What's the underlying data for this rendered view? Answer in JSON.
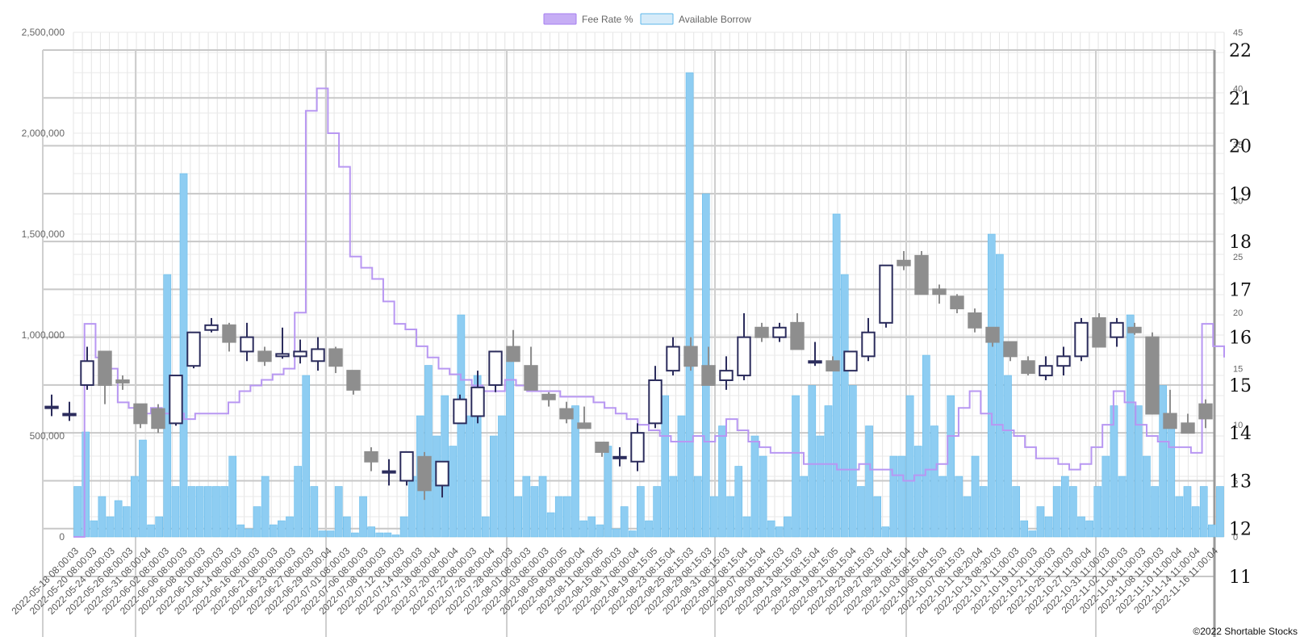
{
  "chart_data": {
    "type": "bar",
    "legend": {
      "position": "top-center",
      "entries": [
        {
          "label": "Fee Rate %",
          "color": "#c6adf5",
          "border": "#a57ef0"
        },
        {
          "label": "Available Borrow",
          "color": "#d6ebf9",
          "border": "#5db7ea"
        }
      ]
    },
    "copyright": "©2022 Shortable Stocks",
    "y_left": {
      "min": 0,
      "max": 2500000,
      "ticks": [
        "0",
        "500,000",
        "1,000,000",
        "1,500,000",
        "2,000,000",
        "2,500,000"
      ]
    },
    "y_fee": {
      "min": 0,
      "max": 45,
      "ticks": [
        "0",
        "5",
        "10",
        "15",
        "20",
        "25",
        "30",
        "35",
        "40",
        "45"
      ]
    },
    "y_price": {
      "min": 11,
      "max": 22,
      "ticks": [
        "11",
        "12",
        "13",
        "14",
        "15",
        "16",
        "17",
        "18",
        "19",
        "20",
        "21",
        "22"
      ]
    },
    "x_labels": [
      "2022-05-18 08:00:03",
      "2022-05-20 08:00:03",
      "2022-05-24 08:00:03",
      "2022-05-26 08:00:03",
      "2022-05-31 08:00:04",
      "2022-06-02 08:00:03",
      "2022-06-06 08:00:03",
      "2022-06-08 08:00:03",
      "2022-06-10 08:00:03",
      "2022-06-14 08:00:03",
      "2022-06-16 08:00:03",
      "2022-06-21 08:00:03",
      "2022-06-23 08:00:03",
      "2022-06-27 08:00:03",
      "2022-06-29 08:00:04",
      "2022-07-01 08:00:03",
      "2022-07-06 08:00:03",
      "2022-07-08 08:00:03",
      "2022-07-12 08:00:03",
      "2022-07-14 08:00:03",
      "2022-07-18 08:00:04",
      "2022-07-20 08:00:04",
      "2022-07-22 08:00:03",
      "2022-07-26 08:00:04",
      "2022-07-28 08:00:03",
      "2022-08-01 08:00:03",
      "2022-08-03 08:00:03",
      "2022-08-05 08:00:05",
      "2022-08-09 08:00:04",
      "2022-08-11 08:00:05",
      "2022-08-15 08:00:03",
      "2022-08-17 08:00:04",
      "2022-08-19 08:15:05",
      "2022-08-23 08:15:04",
      "2022-08-25 08:15:03",
      "2022-08-29 08:15:03",
      "2022-08-31 08:15:03",
      "2022-09-02 08:15:04",
      "2022-09-07 08:15:04",
      "2022-09-09 08:15:03",
      "2022-09-13 08:15:03",
      "2022-09-15 08:15:04",
      "2022-09-19 08:15:05",
      "2022-09-21 08:15:04",
      "2022-09-23 08:15:03",
      "2022-09-27 08:15:04",
      "2022-09-29 08:15:04",
      "2022-10-03 08:15:04",
      "2022-10-05 08:15:03",
      "2022-10-07 08:15:03",
      "2022-10-11 08:20:04",
      "2022-10-13 08:30:03",
      "2022-10-17 11:00:03",
      "2022-10-19 11:00:03",
      "2022-10-21 11:00:03",
      "2022-10-25 11:00:03",
      "2022-10-27 11:00:04",
      "2022-10-31 11:00:03",
      "2022-11-02 11:00:03",
      "2022-11-04 11:00:03",
      "2022-11-08 11:00:03",
      "2022-11-10 11:00:04",
      "2022-11-14 11:00:04",
      "2022-11-16 11:00:04"
    ],
    "available_borrow": [
      250000,
      520000,
      80000,
      200000,
      100000,
      180000,
      150000,
      300000,
      480000,
      60000,
      100000,
      1300000,
      250000,
      1800000,
      250000,
      250000,
      250000,
      250000,
      250000,
      400000,
      60000,
      40000,
      150000,
      300000,
      60000,
      80000,
      100000,
      350000,
      800000,
      250000,
      30000,
      30000,
      250000,
      100000,
      20000,
      200000,
      50000,
      20000,
      20000,
      10000,
      100000,
      300000,
      600000,
      850000,
      500000,
      700000,
      450000,
      1100000,
      600000,
      800000,
      100000,
      500000,
      600000,
      900000,
      200000,
      300000,
      250000,
      300000,
      120000,
      200000,
      200000,
      650000,
      80000,
      100000,
      60000,
      450000,
      40000,
      150000,
      30000,
      250000,
      80000,
      250000,
      700000,
      300000,
      600000,
      2300000,
      300000,
      1700000,
      200000,
      550000,
      200000,
      350000,
      100000,
      500000,
      400000,
      80000,
      50000,
      100000,
      700000,
      300000,
      750000,
      500000,
      650000,
      1600000,
      1300000,
      750000,
      250000,
      550000,
      200000,
      50000,
      400000,
      400000,
      700000,
      450000,
      900000,
      550000,
      300000,
      700000,
      300000,
      200000,
      400000,
      250000,
      1500000,
      1400000,
      800000,
      250000,
      80000,
      30000,
      150000,
      100000,
      250000,
      300000,
      250000,
      100000,
      80000,
      250000,
      400000,
      650000,
      300000,
      1100000,
      650000,
      400000,
      250000,
      750000,
      600000,
      200000,
      250000,
      150000,
      250000,
      60000,
      250000
    ],
    "fee_rate": [
      0,
      19,
      16,
      15,
      12,
      11.5,
      11,
      11.5,
      11,
      11,
      10.5,
      11,
      11,
      11,
      12,
      13,
      13.5,
      14,
      14.5,
      15,
      20,
      38,
      40,
      36,
      33,
      25,
      24,
      23,
      21,
      19,
      18.5,
      17,
      16,
      15,
      14.5,
      14,
      13.5,
      13,
      13,
      14,
      13.5,
      13,
      13,
      13,
      12.5,
      12.5,
      12.5,
      12,
      11.5,
      11,
      10.5,
      10,
      9.5,
      9,
      8.5,
      8.5,
      9,
      8.5,
      9,
      10.5,
      9.5,
      8.5,
      8,
      7.5,
      7.5,
      7.5,
      6.5,
      6.5,
      6.5,
      6,
      6,
      6.5,
      6,
      6,
      5.5,
      5,
      5.5,
      6,
      6.5,
      9,
      11.5,
      13,
      11,
      10,
      9.5,
      9,
      8,
      7,
      7,
      6.5,
      6,
      6.5,
      8,
      10,
      13,
      12,
      10,
      9,
      8.5,
      8,
      8,
      7.5,
      19,
      17,
      16
    ],
    "candles": [
      {
        "o": 14.55,
        "h": 14.8,
        "l": 14.35,
        "c": 14.55
      },
      {
        "o": 14.4,
        "h": 14.65,
        "l": 14.25,
        "c": 14.4
      },
      {
        "o": 15.0,
        "h": 15.8,
        "l": 14.9,
        "c": 15.5
      },
      {
        "o": 15.7,
        "h": 15.7,
        "l": 14.6,
        "c": 15.0
      },
      {
        "o": 15.1,
        "h": 15.2,
        "l": 14.9,
        "c": 15.05
      },
      {
        "o": 14.6,
        "h": 14.6,
        "l": 14.1,
        "c": 14.2
      },
      {
        "o": 14.5,
        "h": 14.6,
        "l": 14.0,
        "c": 14.1
      },
      {
        "o": 14.2,
        "h": 15.1,
        "l": 14.15,
        "c": 15.2
      },
      {
        "o": 15.4,
        "h": 16.0,
        "l": 15.35,
        "c": 16.1
      },
      {
        "o": 16.15,
        "h": 16.4,
        "l": 16.1,
        "c": 16.25
      },
      {
        "o": 16.25,
        "h": 16.3,
        "l": 15.7,
        "c": 15.9
      },
      {
        "o": 15.7,
        "h": 16.3,
        "l": 15.5,
        "c": 16.0
      },
      {
        "o": 15.7,
        "h": 15.8,
        "l": 15.4,
        "c": 15.5
      },
      {
        "o": 15.6,
        "h": 16.2,
        "l": 15.55,
        "c": 15.65
      },
      {
        "o": 15.6,
        "h": 15.95,
        "l": 15.45,
        "c": 15.7
      },
      {
        "o": 15.5,
        "h": 16.0,
        "l": 15.3,
        "c": 15.75
      },
      {
        "o": 15.75,
        "h": 15.8,
        "l": 15.25,
        "c": 15.4
      },
      {
        "o": 15.3,
        "h": 15.3,
        "l": 14.8,
        "c": 14.9
      },
      {
        "o": 13.6,
        "h": 13.7,
        "l": 13.2,
        "c": 13.4
      },
      {
        "o": 13.2,
        "h": 13.45,
        "l": 12.9,
        "c": 13.2
      },
      {
        "o": 13.0,
        "h": 13.4,
        "l": 12.9,
        "c": 13.6
      },
      {
        "o": 13.5,
        "h": 13.6,
        "l": 12.6,
        "c": 12.8
      },
      {
        "o": 12.9,
        "h": 13.3,
        "l": 12.65,
        "c": 13.4
      },
      {
        "o": 14.2,
        "h": 14.8,
        "l": 14.2,
        "c": 14.7
      },
      {
        "o": 14.35,
        "h": 15.3,
        "l": 14.2,
        "c": 14.95
      },
      {
        "o": 15.0,
        "h": 15.6,
        "l": 14.85,
        "c": 15.7
      },
      {
        "o": 15.8,
        "h": 16.15,
        "l": 15.55,
        "c": 15.5
      },
      {
        "o": 15.4,
        "h": 15.8,
        "l": 15.1,
        "c": 14.9
      },
      {
        "o": 14.8,
        "h": 14.85,
        "l": 14.55,
        "c": 14.7
      },
      {
        "o": 14.5,
        "h": 14.65,
        "l": 14.2,
        "c": 14.3
      },
      {
        "o": 14.2,
        "h": 14.55,
        "l": 14.1,
        "c": 14.1
      },
      {
        "o": 13.8,
        "h": 13.8,
        "l": 13.5,
        "c": 13.6
      },
      {
        "o": 13.5,
        "h": 13.7,
        "l": 13.3,
        "c": 13.5
      },
      {
        "o": 13.4,
        "h": 14.2,
        "l": 13.2,
        "c": 14.0
      },
      {
        "o": 14.2,
        "h": 15.4,
        "l": 14.1,
        "c": 15.1
      },
      {
        "o": 15.3,
        "h": 16.0,
        "l": 15.2,
        "c": 15.8
      },
      {
        "o": 15.8,
        "h": 16.0,
        "l": 15.3,
        "c": 15.4
      },
      {
        "o": 15.4,
        "h": 15.8,
        "l": 15.0,
        "c": 15.0
      },
      {
        "o": 15.1,
        "h": 15.6,
        "l": 14.9,
        "c": 15.3
      },
      {
        "o": 15.2,
        "h": 16.5,
        "l": 15.1,
        "c": 16.0
      },
      {
        "o": 16.2,
        "h": 16.3,
        "l": 15.9,
        "c": 16.0
      },
      {
        "o": 16.0,
        "h": 16.3,
        "l": 15.9,
        "c": 16.2
      },
      {
        "o": 16.3,
        "h": 16.5,
        "l": 15.8,
        "c": 15.75
      },
      {
        "o": 15.5,
        "h": 15.9,
        "l": 15.4,
        "c": 15.5
      },
      {
        "o": 15.5,
        "h": 15.6,
        "l": 15.3,
        "c": 15.3
      },
      {
        "o": 15.3,
        "h": 15.6,
        "l": 15.3,
        "c": 15.7
      },
      {
        "o": 15.6,
        "h": 16.4,
        "l": 15.5,
        "c": 16.1
      },
      {
        "o": 16.3,
        "h": 17.2,
        "l": 16.2,
        "c": 17.5
      },
      {
        "o": 17.6,
        "h": 17.8,
        "l": 17.4,
        "c": 17.5
      },
      {
        "o": 17.7,
        "h": 17.8,
        "l": 17.0,
        "c": 16.9
      },
      {
        "o": 17.0,
        "h": 17.1,
        "l": 16.7,
        "c": 16.9
      },
      {
        "o": 16.85,
        "h": 16.9,
        "l": 16.5,
        "c": 16.6
      },
      {
        "o": 16.5,
        "h": 16.6,
        "l": 16.1,
        "c": 16.2
      },
      {
        "o": 16.2,
        "h": 16.2,
        "l": 15.8,
        "c": 15.9
      },
      {
        "o": 15.9,
        "h": 15.9,
        "l": 15.5,
        "c": 15.6
      },
      {
        "o": 15.5,
        "h": 15.6,
        "l": 15.2,
        "c": 15.25
      },
      {
        "o": 15.2,
        "h": 15.6,
        "l": 15.1,
        "c": 15.4
      },
      {
        "o": 15.4,
        "h": 15.8,
        "l": 15.2,
        "c": 15.6
      },
      {
        "o": 15.6,
        "h": 16.4,
        "l": 15.5,
        "c": 16.3
      },
      {
        "o": 16.4,
        "h": 16.5,
        "l": 15.9,
        "c": 15.8
      },
      {
        "o": 16.0,
        "h": 16.4,
        "l": 15.8,
        "c": 16.3
      },
      {
        "o": 16.2,
        "h": 16.3,
        "l": 16.05,
        "c": 16.1
      },
      {
        "o": 16.0,
        "h": 16.1,
        "l": 14.5,
        "c": 14.4
      },
      {
        "o": 14.4,
        "h": 14.9,
        "l": 14.2,
        "c": 14.1
      },
      {
        "o": 14.2,
        "h": 14.4,
        "l": 14.1,
        "c": 14.0
      },
      {
        "o": 14.6,
        "h": 14.7,
        "l": 14.1,
        "c": 14.3
      }
    ]
  }
}
